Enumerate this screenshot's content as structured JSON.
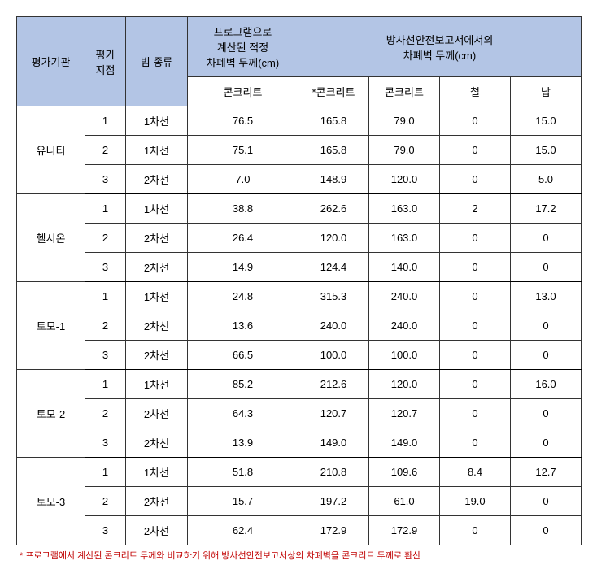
{
  "headers": {
    "col1": "평가기관",
    "col2": "평가\n지점",
    "col3": "빔 종류",
    "group1": "프로그램으로\n계산된 적정\n차폐벽 두께(cm)",
    "group2": "방사선안전보고서에서의\n차폐벽 두께(cm)",
    "sub1": "콘크리트",
    "sub2": "*콘크리트",
    "sub3": "콘크리트",
    "sub4": "철",
    "sub5": "납"
  },
  "groups": [
    {
      "name": "유니티",
      "rows": [
        {
          "point": "1",
          "beam": "1차선",
          "calc": "76.5",
          "c1": "165.8",
          "c2": "79.0",
          "fe": "0",
          "pb": "15.0"
        },
        {
          "point": "2",
          "beam": "1차선",
          "calc": "75.1",
          "c1": "165.8",
          "c2": "79.0",
          "fe": "0",
          "pb": "15.0"
        },
        {
          "point": "3",
          "beam": "2차선",
          "calc": "7.0",
          "c1": "148.9",
          "c2": "120.0",
          "fe": "0",
          "pb": "5.0"
        }
      ]
    },
    {
      "name": "헬시온",
      "rows": [
        {
          "point": "1",
          "beam": "1차선",
          "calc": "38.8",
          "c1": "262.6",
          "c2": "163.0",
          "fe": "2",
          "pb": "17.2"
        },
        {
          "point": "2",
          "beam": "2차선",
          "calc": "26.4",
          "c1": "120.0",
          "c2": "163.0",
          "fe": "0",
          "pb": "0"
        },
        {
          "point": "3",
          "beam": "2차선",
          "calc": "14.9",
          "c1": "124.4",
          "c2": "140.0",
          "fe": "0",
          "pb": "0"
        }
      ]
    },
    {
      "name": "토모-1",
      "rows": [
        {
          "point": "1",
          "beam": "1차선",
          "calc": "24.8",
          "c1": "315.3",
          "c2": "240.0",
          "fe": "0",
          "pb": "13.0"
        },
        {
          "point": "2",
          "beam": "2차선",
          "calc": "13.6",
          "c1": "240.0",
          "c2": "240.0",
          "fe": "0",
          "pb": "0"
        },
        {
          "point": "3",
          "beam": "2차선",
          "calc": "66.5",
          "c1": "100.0",
          "c2": "100.0",
          "fe": "0",
          "pb": "0"
        }
      ]
    },
    {
      "name": "토모-2",
      "rows": [
        {
          "point": "1",
          "beam": "1차선",
          "calc": "85.2",
          "c1": "212.6",
          "c2": "120.0",
          "fe": "0",
          "pb": "16.0"
        },
        {
          "point": "2",
          "beam": "2차선",
          "calc": "64.3",
          "c1": "120.7",
          "c2": "120.7",
          "fe": "0",
          "pb": "0"
        },
        {
          "point": "3",
          "beam": "2차선",
          "calc": "13.9",
          "c1": "149.0",
          "c2": "149.0",
          "fe": "0",
          "pb": "0"
        }
      ]
    },
    {
      "name": "토모-3",
      "rows": [
        {
          "point": "1",
          "beam": "1차선",
          "calc": "51.8",
          "c1": "210.8",
          "c2": "109.6",
          "fe": "8.4",
          "pb": "12.7"
        },
        {
          "point": "2",
          "beam": "2차선",
          "calc": "15.7",
          "c1": "197.2",
          "c2": "61.0",
          "fe": "19.0",
          "pb": "0"
        },
        {
          "point": "3",
          "beam": "2차선",
          "calc": "62.4",
          "c1": "172.9",
          "c2": "172.9",
          "fe": "0",
          "pb": "0"
        }
      ]
    }
  ],
  "footnote": "* 프로그램에서 계산된 콘크리트 두께와 비교하기 위해 방사선안전보고서상의 차폐벽을 콘크리트 두께로 환산"
}
